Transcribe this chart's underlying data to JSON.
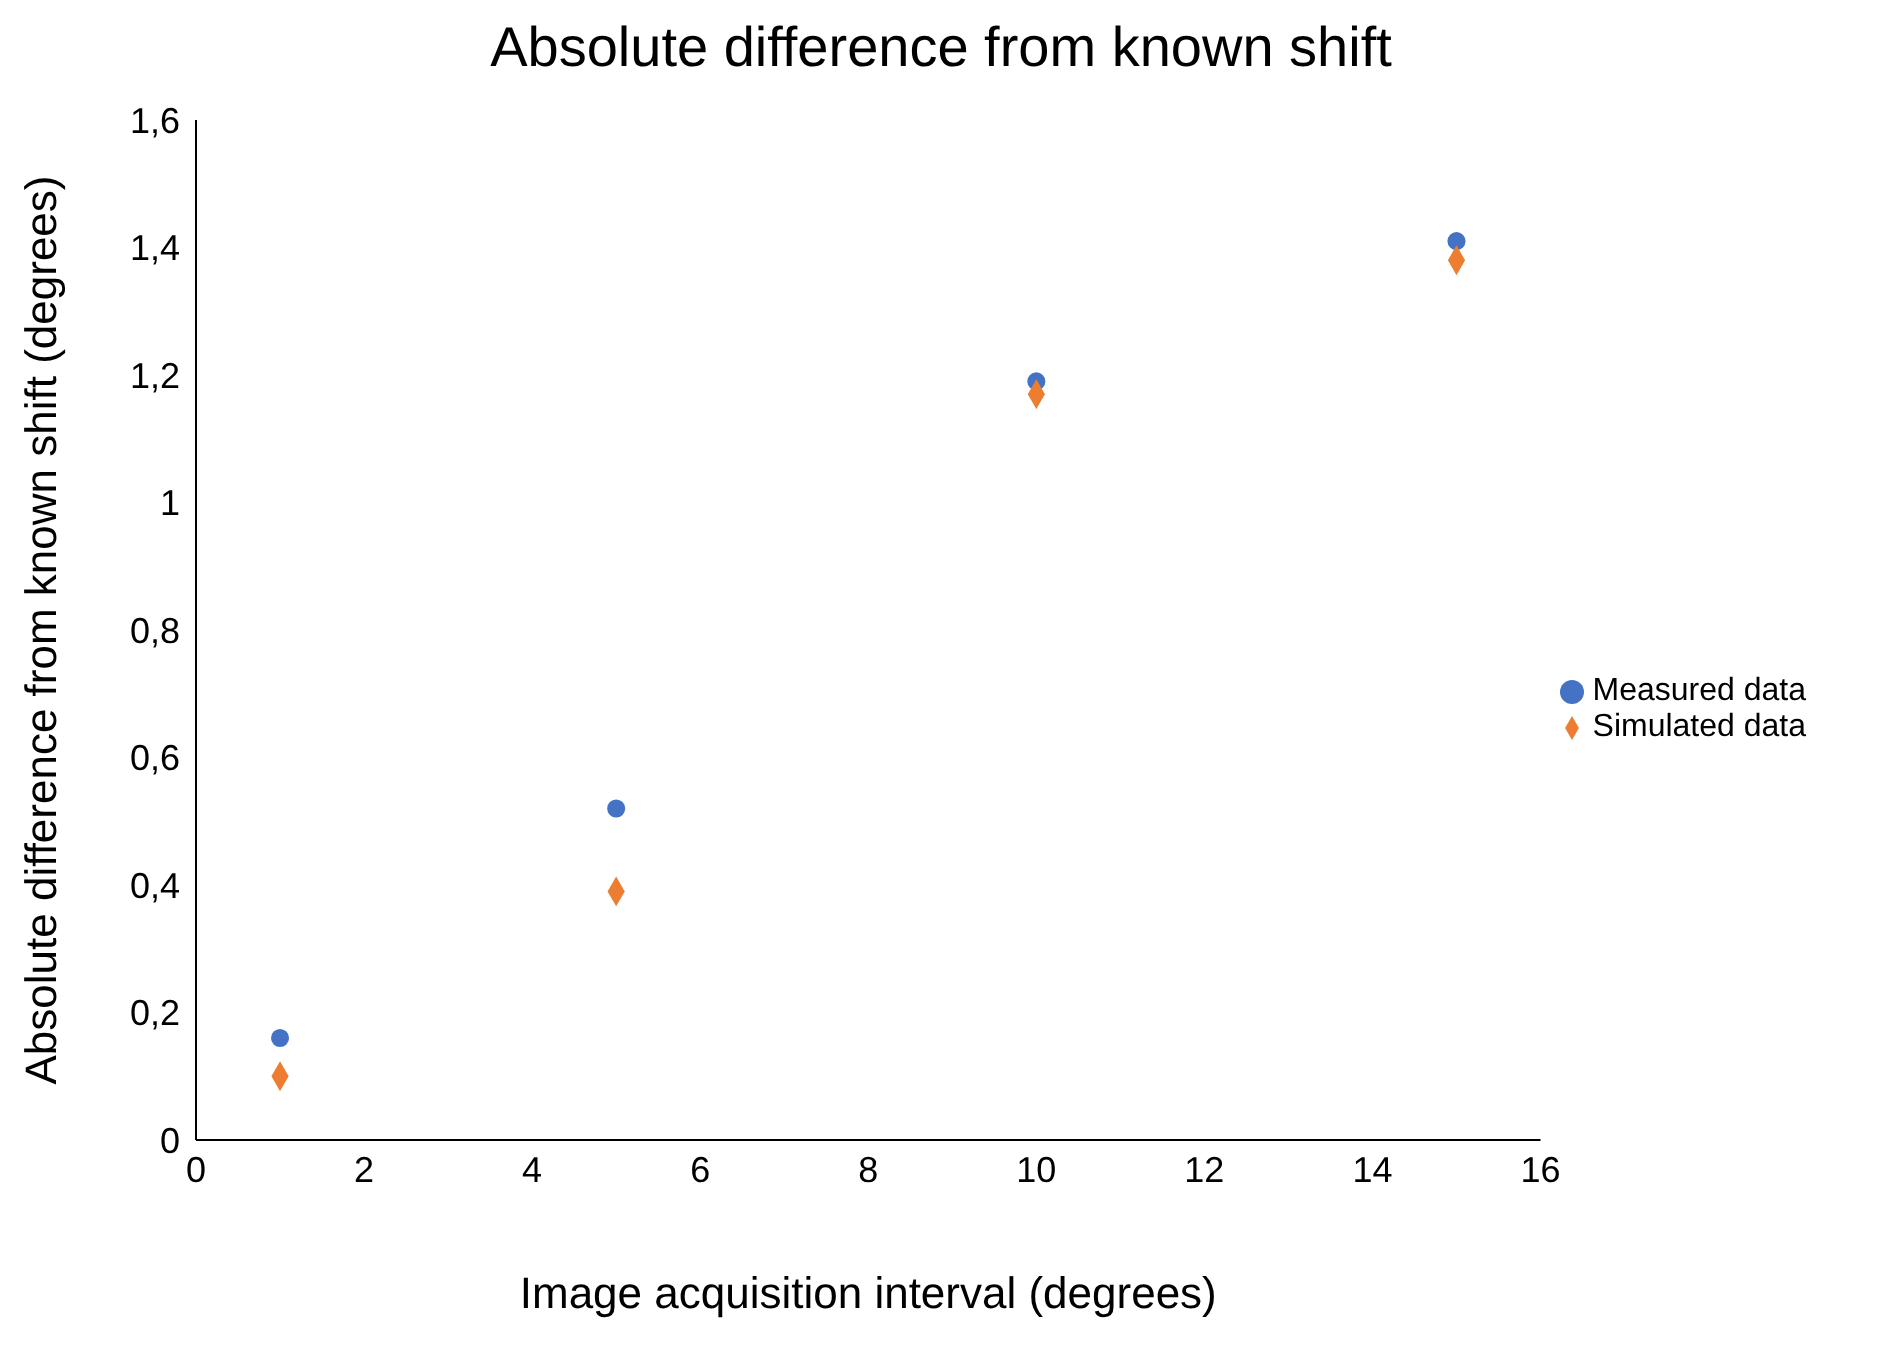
{
  "chart_data": {
    "type": "scatter",
    "title": "Absolute difference from known shift",
    "xlabel": "Image acquisition interval (degrees)",
    "ylabel": "Absolute difference from known shift (degrees)",
    "x": [
      1,
      5,
      10,
      15
    ],
    "series": [
      {
        "name": "Measured data",
        "color": "#4472c4",
        "marker": "circle",
        "values": [
          0.16,
          0.52,
          1.19,
          1.41
        ]
      },
      {
        "name": "Simulated data",
        "color": "#ed7d31",
        "marker": "diamond",
        "values": [
          0.1,
          0.39,
          1.17,
          1.38
        ]
      }
    ],
    "xlim": [
      0,
      16
    ],
    "xticks": [
      0,
      2,
      4,
      6,
      8,
      10,
      12,
      14,
      16
    ],
    "ylim": [
      0,
      1.6
    ],
    "yticks": [
      {
        "value": 0,
        "label": "0"
      },
      {
        "value": 0.2,
        "label": "0,2"
      },
      {
        "value": 0.4,
        "label": "0,4"
      },
      {
        "value": 0.6,
        "label": "0,6"
      },
      {
        "value": 0.8,
        "label": "0,8"
      },
      {
        "value": 1,
        "label": "1"
      },
      {
        "value": 1.2,
        "label": "1,2"
      },
      {
        "value": 1.4,
        "label": "1,4"
      },
      {
        "value": 1.6,
        "label": "1,6"
      }
    ],
    "grid": false,
    "legend": "right"
  }
}
